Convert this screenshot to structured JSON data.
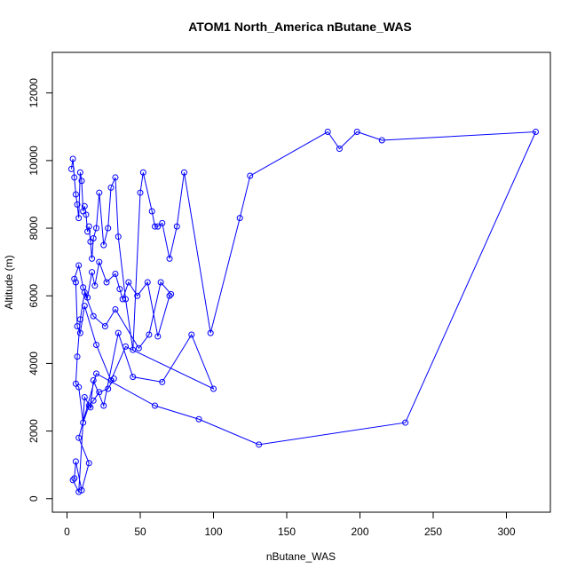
{
  "chart_data": {
    "type": "scatter",
    "title": "ATOM1 North_America nButane_WAS",
    "xlabel": "nButane_WAS",
    "ylabel": "Altitude (m)",
    "xlim": [
      -10,
      330
    ],
    "ylim": [
      -400,
      13200
    ],
    "x_ticks": [
      0,
      50,
      100,
      150,
      200,
      250,
      300
    ],
    "y_ticks": [
      0,
      2000,
      4000,
      6000,
      8000,
      10000,
      12000
    ],
    "grid": false,
    "series_color": "#0000ff",
    "series": [
      {
        "x": [
          3,
          4,
          5,
          6,
          7,
          8,
          9,
          10,
          11,
          12,
          13,
          14,
          15,
          16,
          17,
          18,
          20,
          22,
          25,
          28,
          30,
          33,
          35,
          40,
          45,
          50,
          52,
          58,
          60,
          62,
          65,
          70,
          75,
          80,
          98,
          118,
          125,
          178,
          186,
          198,
          215,
          320,
          231,
          131,
          90,
          60,
          20,
          8,
          15,
          10,
          6,
          5,
          4,
          8,
          12,
          16,
          18,
          25,
          35,
          45,
          65,
          85,
          100,
          40,
          30,
          20,
          12,
          9,
          7,
          6,
          5,
          8,
          11,
          14,
          17,
          19,
          22,
          27,
          33,
          36,
          38,
          42,
          48,
          55,
          62,
          70,
          71,
          64,
          56,
          49,
          33,
          26,
          18,
          12,
          9,
          7,
          6,
          8,
          11,
          15,
          18,
          22,
          28,
          32
        ],
        "y": [
          9750,
          10050,
          9500,
          9000,
          8700,
          8300,
          9650,
          9400,
          8500,
          8650,
          8400,
          7900,
          8050,
          7600,
          7100,
          7700,
          8000,
          9050,
          7500,
          8000,
          9200,
          9500,
          7750,
          5900,
          4400,
          9050,
          9650,
          8500,
          8050,
          8050,
          8150,
          7100,
          8050,
          9650,
          4900,
          8300,
          9550,
          10850,
          10350,
          10850,
          10600,
          10850,
          2250,
          1600,
          2350,
          2750,
          3700,
          1800,
          1050,
          250,
          1100,
          600,
          550,
          200,
          3000,
          2700,
          3500,
          2750,
          4900,
          3600,
          3450,
          4850,
          3250,
          4500,
          3500,
          4550,
          5700,
          4900,
          5100,
          6400,
          6500,
          6900,
          6250,
          5950,
          6700,
          6300,
          7000,
          6400,
          6650,
          6200,
          5900,
          6400,
          6000,
          6400,
          4800,
          6000,
          6050,
          6400,
          4850,
          4450,
          5600,
          5100,
          5400,
          6100,
          5300,
          4200,
          3400,
          3300,
          2250,
          2750,
          2900,
          3150,
          3250,
          3550
        ]
      }
    ]
  }
}
